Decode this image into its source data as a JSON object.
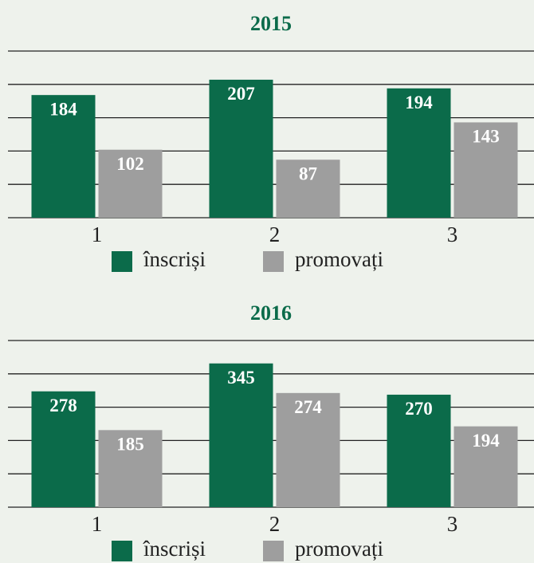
{
  "chart_data": [
    {
      "type": "bar",
      "title": "2015",
      "categories": [
        "1",
        "2",
        "3"
      ],
      "series": [
        {
          "name": "înscriși",
          "color": "#0b6b4a",
          "values": [
            184,
            207,
            194
          ]
        },
        {
          "name": "promovați",
          "color": "#9e9e9e",
          "values": [
            102,
            87,
            143
          ]
        }
      ],
      "ylim": [
        0,
        250
      ],
      "yticks": [
        0,
        50,
        100,
        150,
        200,
        250
      ],
      "grid": true
    },
    {
      "type": "bar",
      "title": "2016",
      "categories": [
        "1",
        "2",
        "3"
      ],
      "series": [
        {
          "name": "înscriși",
          "color": "#0b6b4a",
          "values": [
            278,
            345,
            270
          ]
        },
        {
          "name": "promovați",
          "color": "#9e9e9e",
          "values": [
            185,
            274,
            194
          ]
        }
      ],
      "ylim": [
        0,
        400
      ],
      "yticks": [
        0,
        80,
        160,
        240,
        320,
        400
      ],
      "grid": true
    }
  ]
}
